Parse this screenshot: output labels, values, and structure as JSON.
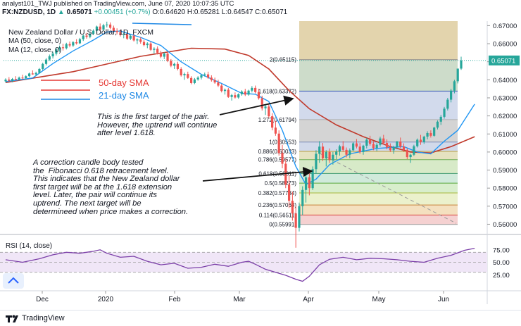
{
  "header": {
    "published_line": "analyst101_TWJ published on TradingView.com, June 07, 2020 10:07:35 UTC",
    "symbol": "FX:NZDUSD, 1D",
    "price": "0.65071",
    "change": "+0.00451 (+0.7%)",
    "ohlc": "O:0.64620 H:0.65281 L:0.64547 C:0.65071"
  },
  "legend": {
    "title": "New Zealand Dollar / U.S. Dollar, 1D, FXCM",
    "ma50": "MA (50, close, 0)",
    "ma12": "MA (12, close, 0)"
  },
  "labels": {
    "sma50": "50-day SMA",
    "sma21": "21-day SMA",
    "target_note": "This is the first target of the pair.\nHowever, the uptrend will continue\nafter level 1.618.",
    "correction_note": "A correction candle body tested\nthe  Fibonacci 0.618 retracement level.\nThis indicates that the New Zealand dollar\nfirst target will be at the 1.618 extension\nlevel. Later, the pair will continue its\nuptrend. The next target will be\ndetermineed when price makes a correction."
  },
  "rsi": {
    "label": "RSI (14, close)",
    "ticks": [
      "75.00",
      "50.00",
      "25.00"
    ]
  },
  "footer": {
    "brand": "TradingView"
  },
  "colors": {
    "up": "#26a69a",
    "down": "#ef5350",
    "ma50": "#c0392b",
    "ma12": "#2196f3",
    "rsi": "#7b3fa8",
    "arrow": "#2f3ad6"
  },
  "chart_data": {
    "type": "candlestick",
    "y_axis": {
      "ticks": [
        "0.67000",
        "0.66000",
        "0.65000",
        "0.64000",
        "0.63000",
        "0.62000",
        "0.61000",
        "0.60000",
        "0.59000",
        "0.58000",
        "0.57000",
        "0.56000"
      ],
      "ylim": [
        0.5555,
        0.6725
      ],
      "last_price": "0.65071"
    },
    "x_axis": {
      "ticks": [
        "Dec",
        "2020",
        "Feb",
        "Mar",
        "Apr",
        "May",
        "Jun"
      ]
    },
    "candles": [
      [
        0.6392,
        0.6408,
        0.6385,
        0.6401
      ],
      [
        0.6401,
        0.6415,
        0.639,
        0.6395
      ],
      [
        0.6395,
        0.641,
        0.6386,
        0.6405
      ],
      [
        0.6405,
        0.642,
        0.6397,
        0.6402
      ],
      [
        0.6402,
        0.6418,
        0.6396,
        0.6412
      ],
      [
        0.6412,
        0.6428,
        0.6404,
        0.6409
      ],
      [
        0.6409,
        0.6425,
        0.6401,
        0.642
      ],
      [
        0.642,
        0.644,
        0.6415,
        0.6435
      ],
      [
        0.6435,
        0.6452,
        0.6428,
        0.643
      ],
      [
        0.643,
        0.6445,
        0.6422,
        0.6438
      ],
      [
        0.6438,
        0.6465,
        0.6435,
        0.646
      ],
      [
        0.646,
        0.6495,
        0.6452,
        0.6488
      ],
      [
        0.6488,
        0.652,
        0.648,
        0.6512
      ],
      [
        0.6512,
        0.654,
        0.6505,
        0.653
      ],
      [
        0.653,
        0.6555,
        0.6518,
        0.6545
      ],
      [
        0.6545,
        0.6575,
        0.6535,
        0.6568
      ],
      [
        0.6568,
        0.659,
        0.6555,
        0.658
      ],
      [
        0.658,
        0.66,
        0.6562,
        0.6575
      ],
      [
        0.6575,
        0.6605,
        0.6568,
        0.6598
      ],
      [
        0.6598,
        0.6612,
        0.658,
        0.659
      ],
      [
        0.659,
        0.6615,
        0.6582,
        0.6608
      ],
      [
        0.6608,
        0.6625,
        0.6595,
        0.6602
      ],
      [
        0.6602,
        0.6632,
        0.6598,
        0.6625
      ],
      [
        0.6625,
        0.665,
        0.6615,
        0.6645
      ],
      [
        0.6645,
        0.666,
        0.6628,
        0.6638
      ],
      [
        0.6638,
        0.6662,
        0.663,
        0.6655
      ],
      [
        0.6655,
        0.668,
        0.6648,
        0.6672
      ],
      [
        0.6672,
        0.67,
        0.666,
        0.6695
      ],
      [
        0.6695,
        0.6712,
        0.667,
        0.6678
      ],
      [
        0.6678,
        0.671,
        0.6672,
        0.6702
      ],
      [
        0.6702,
        0.6722,
        0.669,
        0.6706
      ],
      [
        0.6706,
        0.6718,
        0.668,
        0.6688
      ],
      [
        0.6688,
        0.67,
        0.6662,
        0.667
      ],
      [
        0.667,
        0.6685,
        0.6652,
        0.6664
      ],
      [
        0.6664,
        0.6678,
        0.664,
        0.6648
      ],
      [
        0.6648,
        0.666,
        0.663,
        0.6652
      ],
      [
        0.6652,
        0.6662,
        0.662,
        0.6628
      ],
      [
        0.6628,
        0.665,
        0.662,
        0.6644
      ],
      [
        0.6644,
        0.6655,
        0.6612,
        0.6618
      ],
      [
        0.6618,
        0.663,
        0.6598,
        0.6624
      ],
      [
        0.6624,
        0.6635,
        0.66,
        0.661
      ],
      [
        0.661,
        0.662,
        0.6585,
        0.6592
      ],
      [
        0.6592,
        0.6608,
        0.6575,
        0.6601
      ],
      [
        0.6601,
        0.661,
        0.656,
        0.6566
      ],
      [
        0.6566,
        0.658,
        0.6545,
        0.6572
      ],
      [
        0.6572,
        0.6585,
        0.654,
        0.655
      ],
      [
        0.655,
        0.656,
        0.652,
        0.6528
      ],
      [
        0.6528,
        0.6552,
        0.6515,
        0.6545
      ],
      [
        0.6545,
        0.6555,
        0.6498,
        0.6505
      ],
      [
        0.6505,
        0.6515,
        0.647,
        0.6478
      ],
      [
        0.6478,
        0.6495,
        0.646,
        0.6488
      ],
      [
        0.6488,
        0.65,
        0.6452,
        0.646
      ],
      [
        0.646,
        0.647,
        0.6418,
        0.6425
      ],
      [
        0.6425,
        0.644,
        0.64,
        0.6432
      ],
      [
        0.6432,
        0.6445,
        0.6405,
        0.641
      ],
      [
        0.641,
        0.642,
        0.6375,
        0.6382
      ],
      [
        0.6382,
        0.641,
        0.6376,
        0.6402
      ],
      [
        0.6402,
        0.642,
        0.6395,
        0.6412
      ],
      [
        0.6412,
        0.6432,
        0.6402,
        0.6425
      ],
      [
        0.6425,
        0.644,
        0.6418,
        0.643
      ],
      [
        0.643,
        0.6445,
        0.6405,
        0.6412
      ],
      [
        0.6412,
        0.6425,
        0.639,
        0.6398
      ],
      [
        0.6398,
        0.6412,
        0.6378,
        0.6385
      ],
      [
        0.6385,
        0.64,
        0.636,
        0.6368
      ],
      [
        0.6368,
        0.6378,
        0.633,
        0.6338
      ],
      [
        0.6338,
        0.6352,
        0.6318,
        0.6345
      ],
      [
        0.6345,
        0.6355,
        0.63,
        0.6305
      ],
      [
        0.6305,
        0.6322,
        0.6285,
        0.6315
      ],
      [
        0.6315,
        0.633,
        0.6296,
        0.6302
      ],
      [
        0.6302,
        0.6325,
        0.6295,
        0.632
      ],
      [
        0.632,
        0.6342,
        0.6312,
        0.6335
      ],
      [
        0.6335,
        0.635,
        0.631,
        0.6318
      ],
      [
        0.6318,
        0.6345,
        0.6312,
        0.634
      ],
      [
        0.634,
        0.6365,
        0.633,
        0.6355
      ],
      [
        0.6355,
        0.6368,
        0.6325,
        0.6332
      ],
      [
        0.6332,
        0.635,
        0.629,
        0.6298
      ],
      [
        0.6298,
        0.6312,
        0.623,
        0.6242
      ],
      [
        0.6242,
        0.6262,
        0.6205,
        0.6252
      ],
      [
        0.6252,
        0.627,
        0.619,
        0.6198
      ],
      [
        0.6198,
        0.6215,
        0.612,
        0.6135
      ],
      [
        0.6135,
        0.6172,
        0.609,
        0.6102
      ],
      [
        0.6102,
        0.612,
        0.598,
        0.5995
      ],
      [
        0.5995,
        0.604,
        0.591,
        0.5935
      ],
      [
        0.5935,
        0.596,
        0.58,
        0.582
      ],
      [
        0.582,
        0.587,
        0.569,
        0.573
      ],
      [
        0.573,
        0.578,
        0.562,
        0.566
      ],
      [
        0.566,
        0.57,
        0.547,
        0.558
      ],
      [
        0.558,
        0.572,
        0.556,
        0.57
      ],
      [
        0.57,
        0.581,
        0.565,
        0.579
      ],
      [
        0.579,
        0.588,
        0.572,
        0.586
      ],
      [
        0.586,
        0.59,
        0.576,
        0.58
      ],
      [
        0.58,
        0.592,
        0.579,
        0.5905
      ],
      [
        0.5905,
        0.601,
        0.588,
        0.599
      ],
      [
        0.599,
        0.606,
        0.594,
        0.603
      ],
      [
        0.603,
        0.605,
        0.595,
        0.5965
      ],
      [
        0.5965,
        0.601,
        0.592,
        0.6
      ],
      [
        0.6,
        0.602,
        0.594,
        0.5955
      ],
      [
        0.5955,
        0.6,
        0.593,
        0.5985
      ],
      [
        0.5985,
        0.6015,
        0.596,
        0.6002
      ],
      [
        0.6002,
        0.604,
        0.598,
        0.6032
      ],
      [
        0.6032,
        0.606,
        0.6,
        0.6012
      ],
      [
        0.6012,
        0.6025,
        0.597,
        0.5985
      ],
      [
        0.5985,
        0.602,
        0.5965,
        0.601
      ],
      [
        0.601,
        0.6055,
        0.6005,
        0.6048
      ],
      [
        0.6048,
        0.6072,
        0.602,
        0.603
      ],
      [
        0.603,
        0.605,
        0.599,
        0.6
      ],
      [
        0.6,
        0.604,
        0.5985,
        0.6035
      ],
      [
        0.6035,
        0.6078,
        0.602,
        0.6068
      ],
      [
        0.6068,
        0.609,
        0.6035,
        0.6045
      ],
      [
        0.6045,
        0.606,
        0.601,
        0.6022
      ],
      [
        0.6022,
        0.605,
        0.6005,
        0.604
      ],
      [
        0.604,
        0.6085,
        0.603,
        0.6075
      ],
      [
        0.6075,
        0.6095,
        0.604,
        0.605
      ],
      [
        0.605,
        0.607,
        0.6015,
        0.6025
      ],
      [
        0.6025,
        0.6048,
        0.6,
        0.601
      ],
      [
        0.601,
        0.6035,
        0.599,
        0.6028
      ],
      [
        0.6028,
        0.6062,
        0.6015,
        0.6058
      ],
      [
        0.6058,
        0.608,
        0.6022,
        0.603
      ],
      [
        0.603,
        0.6048,
        0.6,
        0.6012
      ],
      [
        0.6012,
        0.6022,
        0.596,
        0.5972
      ],
      [
        0.5972,
        0.599,
        0.594,
        0.5985
      ],
      [
        0.5985,
        0.604,
        0.5978,
        0.6032
      ],
      [
        0.6032,
        0.6075,
        0.6025,
        0.6068
      ],
      [
        0.6068,
        0.6095,
        0.604,
        0.6055
      ],
      [
        0.6055,
        0.609,
        0.6045,
        0.6085
      ],
      [
        0.6085,
        0.6115,
        0.607,
        0.6105
      ],
      [
        0.6105,
        0.612,
        0.608,
        0.609
      ],
      [
        0.609,
        0.614,
        0.6085,
        0.6135
      ],
      [
        0.6135,
        0.6175,
        0.6125,
        0.6168
      ],
      [
        0.6168,
        0.6205,
        0.615,
        0.6195
      ],
      [
        0.6195,
        0.625,
        0.6185,
        0.624
      ],
      [
        0.624,
        0.63,
        0.623,
        0.629
      ],
      [
        0.629,
        0.635,
        0.6275,
        0.634
      ],
      [
        0.634,
        0.64,
        0.6325,
        0.6392
      ],
      [
        0.6392,
        0.646,
        0.638,
        0.6462
      ],
      [
        0.6462,
        0.6528,
        0.6455,
        0.6507
      ]
    ],
    "ma50": [
      [
        0,
        0.6385
      ],
      [
        20,
        0.6445
      ],
      [
        40,
        0.653
      ],
      [
        55,
        0.6575
      ],
      [
        65,
        0.657
      ],
      [
        72,
        0.6535
      ],
      [
        78,
        0.646
      ],
      [
        84,
        0.634
      ],
      [
        90,
        0.624
      ],
      [
        98,
        0.615
      ],
      [
        106,
        0.6085
      ],
      [
        114,
        0.603
      ],
      [
        120,
        0.6
      ],
      [
        126,
        0.5995
      ],
      [
        132,
        0.603
      ],
      [
        139,
        0.6085
      ]
    ],
    "ma12": [
      [
        0,
        0.639
      ],
      [
        8,
        0.641
      ],
      [
        14,
        0.649
      ],
      [
        20,
        0.656
      ],
      [
        26,
        0.662
      ],
      [
        30,
        0.6665
      ],
      [
        34,
        0.667
      ],
      [
        40,
        0.6635
      ],
      [
        46,
        0.659
      ],
      [
        52,
        0.65
      ],
      [
        58,
        0.643
      ],
      [
        64,
        0.638
      ],
      [
        70,
        0.6325
      ],
      [
        74,
        0.632
      ],
      [
        78,
        0.628
      ],
      [
        82,
        0.612
      ],
      [
        86,
        0.592
      ],
      [
        89,
        0.582
      ],
      [
        92,
        0.585
      ],
      [
        96,
        0.593
      ],
      [
        102,
        0.599
      ],
      [
        110,
        0.602
      ],
      [
        118,
        0.603
      ],
      [
        122,
        0.6
      ],
      [
        126,
        0.599
      ],
      [
        130,
        0.606
      ],
      [
        134,
        0.612
      ],
      [
        139,
        0.6265
      ]
    ],
    "fibonacci": [
      {
        "label": "2(0.65115)",
        "value": 0.65115,
        "band": "#c8d8c4"
      },
      {
        "label": "1.618(0.63372)",
        "value": 0.63372,
        "band": "#cdd6ea"
      },
      {
        "label": "1.272(0.61794)",
        "value": 0.61794,
        "band": "#cfcfcf"
      },
      {
        "label": "1(0.60553)",
        "value": 0.60553,
        "band": "#ccd5e8"
      },
      {
        "label": "0.886(0.60033)",
        "value": 0.60033,
        "band": "#e2dfb9"
      },
      {
        "label": "0.786(0.59577)",
        "value": 0.59577,
        "band": "#d3e8c2"
      },
      {
        "label": "0.618(0.58811)",
        "value": 0.58811,
        "band": "#cbe8d7"
      },
      {
        "label": "0.5(0.58273)",
        "value": 0.58273,
        "band": "#d4ecc6"
      },
      {
        "label": "0.382(0.57734)",
        "value": 0.57734,
        "band": "#e9efc6"
      },
      {
        "label": "0.236(0.57068)",
        "value": 0.57068,
        "band": "#f3ddb8"
      },
      {
        "label": "0.114(0.56511)",
        "value": 0.56511,
        "band": "#f4cccc"
      },
      {
        "label": "0(0.55991)",
        "value": 0.55991,
        "band": ""
      }
    ],
    "fib_top_band": "#e3d4ad",
    "rsi_values": [
      [
        0,
        55
      ],
      [
        5,
        50
      ],
      [
        10,
        57
      ],
      [
        14,
        65
      ],
      [
        18,
        70
      ],
      [
        22,
        68
      ],
      [
        26,
        72
      ],
      [
        28,
        75
      ],
      [
        30,
        68
      ],
      [
        34,
        60
      ],
      [
        38,
        62
      ],
      [
        42,
        52
      ],
      [
        46,
        45
      ],
      [
        50,
        48
      ],
      [
        54,
        38
      ],
      [
        58,
        40
      ],
      [
        62,
        46
      ],
      [
        66,
        42
      ],
      [
        70,
        50
      ],
      [
        72,
        52
      ],
      [
        74,
        46
      ],
      [
        77,
        36
      ],
      [
        80,
        30
      ],
      [
        83,
        24
      ],
      [
        86,
        16
      ],
      [
        88,
        12
      ],
      [
        90,
        22
      ],
      [
        93,
        45
      ],
      [
        96,
        56
      ],
      [
        100,
        60
      ],
      [
        104,
        55
      ],
      [
        108,
        58
      ],
      [
        112,
        57
      ],
      [
        116,
        55
      ],
      [
        120,
        52
      ],
      [
        124,
        50
      ],
      [
        128,
        58
      ],
      [
        132,
        64
      ],
      [
        136,
        74
      ],
      [
        139,
        78
      ]
    ],
    "rsi_ylim": [
      0,
      100
    ],
    "rsi_band": [
      30,
      70
    ]
  }
}
